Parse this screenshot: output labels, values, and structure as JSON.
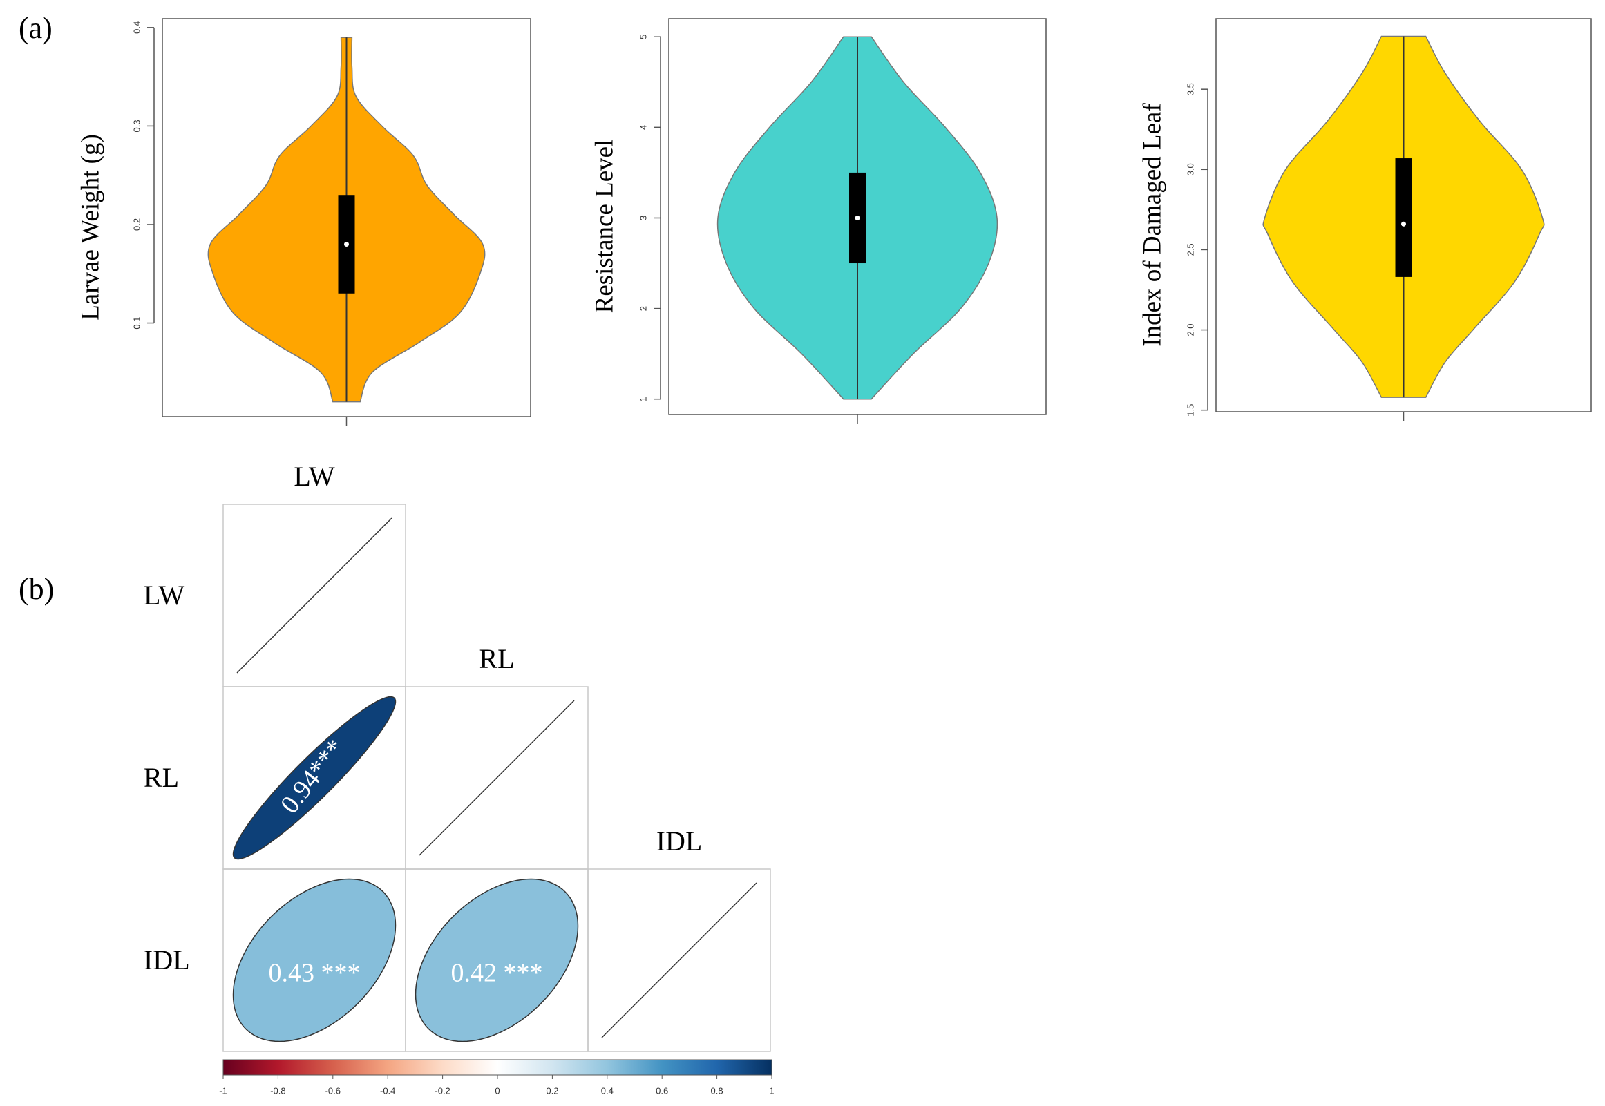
{
  "panel_labels": [
    "(a)",
    "(b)"
  ],
  "chart_data": [
    {
      "type": "violin",
      "ylabel": "Larvae Weight (g)",
      "color": "#FFA500",
      "ylim": [
        0.005,
        0.409
      ],
      "yticks": [
        0.1,
        0.2,
        0.3,
        0.4
      ],
      "min": 0.02,
      "q1": 0.13,
      "median": 0.18,
      "q3": 0.23,
      "max": 0.39,
      "density_y": [
        0.02,
        0.05,
        0.08,
        0.11,
        0.15,
        0.18,
        0.21,
        0.24,
        0.27,
        0.3,
        0.33,
        0.36,
        0.39
      ],
      "density": [
        0.1,
        0.19,
        0.53,
        0.83,
        0.98,
        1,
        0.79,
        0.59,
        0.49,
        0.26,
        0.07,
        0.04,
        0.04
      ]
    },
    {
      "type": "violin",
      "ylabel": "Resistance Level",
      "color": "#48D1CC",
      "ylim": [
        0.83,
        5.2
      ],
      "yticks": [
        1,
        2,
        3,
        4,
        5
      ],
      "min": 1,
      "q1": 2.5,
      "median": 3,
      "q3": 3.5,
      "max": 5,
      "density_y": [
        1,
        1.5,
        2,
        2.5,
        3,
        3.5,
        4,
        4.5,
        5
      ],
      "density": [
        0.1,
        0.4,
        0.74,
        0.94,
        1,
        0.88,
        0.63,
        0.33,
        0.1
      ]
    },
    {
      "type": "violin",
      "ylabel": "Index of Damaged Leaf",
      "color": "#FFD700",
      "ylim": [
        1.49,
        3.94
      ],
      "yticks": [
        {
          "value": 1.5,
          "label": "1.5"
        },
        {
          "value": 2,
          "label": "2.0"
        },
        {
          "value": 2.5,
          "label": "2.5"
        },
        {
          "value": 3,
          "label": "3.0"
        },
        {
          "value": 3.5,
          "label": "3.5"
        }
      ],
      "min": 1.58,
      "q1": 2.33,
      "median": 2.66,
      "q3": 3.07,
      "max": 3.83,
      "density_y": [
        1.58,
        1.8,
        2.0,
        2.3,
        2.6,
        2.7,
        3.0,
        3.3,
        3.6,
        3.83
      ],
      "density": [
        0.16,
        0.3,
        0.5,
        0.8,
        0.98,
        1,
        0.85,
        0.55,
        0.3,
        0.16
      ]
    },
    {
      "type": "corrplot",
      "variables": [
        "LW",
        "RL",
        "IDL"
      ],
      "values": [
        [
          1,
          null,
          null
        ],
        [
          0.94,
          1,
          null
        ],
        [
          0.43,
          0.42,
          1
        ]
      ],
      "value_labels": [
        [
          null,
          null,
          null
        ],
        [
          "0.94***",
          null,
          null
        ],
        [
          "0.43 ***",
          "0.42 ***",
          null
        ]
      ],
      "clim": [
        -1,
        1
      ],
      "colorscale": [
        "#67001F",
        "#B2182B",
        "#D6604D",
        "#F4A582",
        "#FDDBC7",
        "#FFFFFF",
        "#D1E5F0",
        "#92C5DE",
        "#4393C3",
        "#2166AC",
        "#053061"
      ],
      "cticks": [
        -1,
        -0.8,
        -0.6,
        -0.4,
        -0.2,
        0,
        0.2,
        0.4,
        0.6,
        0.8,
        1
      ]
    }
  ]
}
